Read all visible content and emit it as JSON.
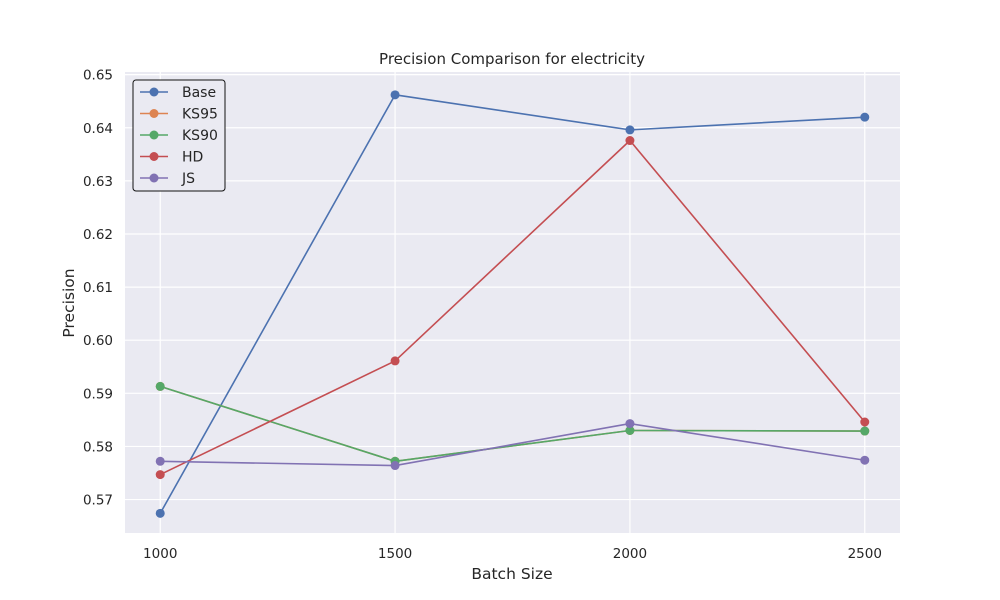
{
  "chart_data": {
    "type": "line",
    "title": "Precision Comparison for electricity",
    "xlabel": "Batch Size",
    "ylabel": "Precision",
    "x": [
      1000,
      1500,
      2000,
      2500
    ],
    "x_tick_labels": [
      "1000",
      "1500",
      "2000",
      "2500"
    ],
    "xlim": [
      925,
      2575
    ],
    "ylim": [
      0.5637,
      0.6505
    ],
    "y_ticks": [
      0.57,
      0.58,
      0.59,
      0.6,
      0.61,
      0.62,
      0.63,
      0.64,
      0.65
    ],
    "y_tick_labels": [
      "0.57",
      "0.58",
      "0.59",
      "0.60",
      "0.61",
      "0.62",
      "0.63",
      "0.64",
      "0.65"
    ],
    "grid": true,
    "legend_position": "top-left",
    "series": [
      {
        "name": "Base",
        "color": "#4c72b0",
        "values": [
          0.5674,
          0.6462,
          0.6396,
          0.642
        ]
      },
      {
        "name": "KS95",
        "color": "#dd8452",
        "values": [
          0.5913,
          0.5772,
          0.583,
          0.5829
        ]
      },
      {
        "name": "KS90",
        "color": "#55a868",
        "values": [
          0.5913,
          0.5772,
          0.583,
          0.5829
        ]
      },
      {
        "name": "HD",
        "color": "#c44e52",
        "values": [
          0.5747,
          0.5961,
          0.6376,
          0.5846
        ]
      },
      {
        "name": "JS",
        "color": "#8172b3",
        "values": [
          0.5772,
          0.5764,
          0.5843,
          0.5774
        ]
      }
    ]
  }
}
